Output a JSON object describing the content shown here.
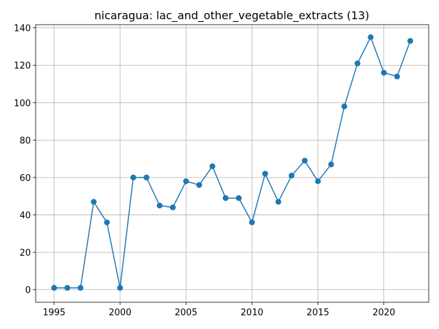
{
  "chart_data": {
    "type": "line",
    "title": "nicaragua: lac_and_other_vegetable_extracts (13)",
    "xlabel": "",
    "ylabel": "",
    "x": [
      1995,
      1996,
      1997,
      1998,
      1999,
      2000,
      2001,
      2002,
      2003,
      2004,
      2005,
      2006,
      2007,
      2008,
      2009,
      2010,
      2011,
      2012,
      2013,
      2014,
      2015,
      2016,
      2017,
      2018,
      2019,
      2020,
      2021,
      2022
    ],
    "series": [
      {
        "values": [
          1,
          1,
          1,
          47,
          36,
          1,
          60,
          60,
          45,
          44,
          58,
          56,
          66,
          49,
          49,
          36,
          62,
          47,
          61,
          69,
          58,
          67,
          98,
          121,
          135,
          116,
          114,
          133
        ],
        "color": "#1f77b4"
      }
    ],
    "xlim": [
      1993.6,
      2023.4
    ],
    "ylim": [
      -6.7,
      141.7
    ],
    "xticks": [
      1995,
      2000,
      2005,
      2010,
      2015,
      2020
    ],
    "yticks": [
      0,
      20,
      40,
      60,
      80,
      100,
      120,
      140
    ],
    "grid": true,
    "marker": "circle"
  }
}
